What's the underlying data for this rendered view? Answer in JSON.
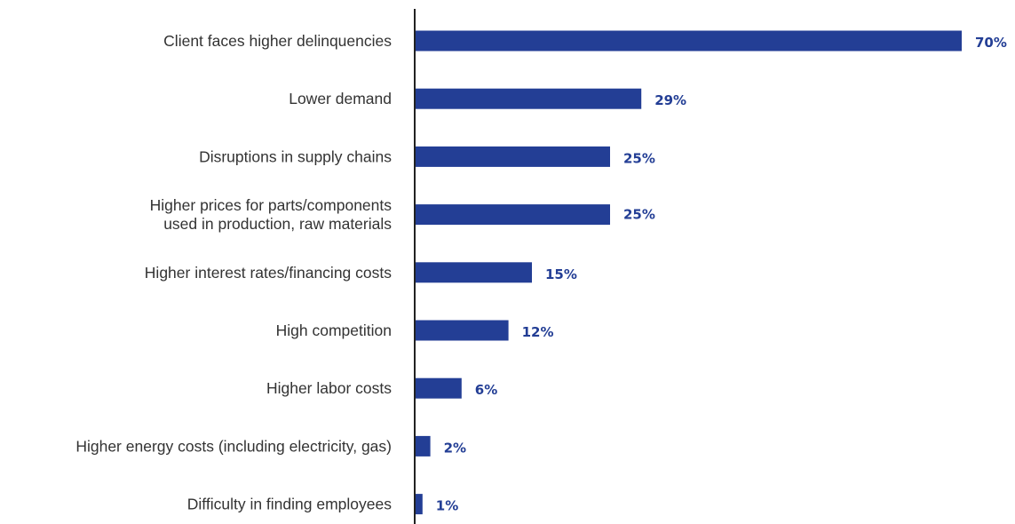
{
  "chart_data": {
    "type": "bar",
    "orientation": "horizontal",
    "categories": [
      [
        "Client faces higher delinquencies"
      ],
      [
        "Lower demand"
      ],
      [
        "Disruptions in supply chains"
      ],
      [
        "Higher prices for parts/components",
        "used in production,  raw materials"
      ],
      [
        "Higher interest rates/financing costs"
      ],
      [
        "High competition"
      ],
      [
        "Higher labor costs"
      ],
      [
        "Higher energy costs (including electricity, gas)"
      ],
      [
        "Difficulty in finding employees"
      ]
    ],
    "values": [
      70,
      29,
      25,
      25,
      15,
      12,
      6,
      2,
      1
    ],
    "value_labels": [
      "70%",
      "29%",
      "25%",
      "25%",
      "15%",
      "12%",
      "6%",
      "2%",
      "1%"
    ],
    "xlim": [
      0,
      70
    ],
    "grid": false,
    "legend": "none",
    "bar_color": "#233e95",
    "label_color": "#233e95",
    "axis_color": "#222222"
  }
}
